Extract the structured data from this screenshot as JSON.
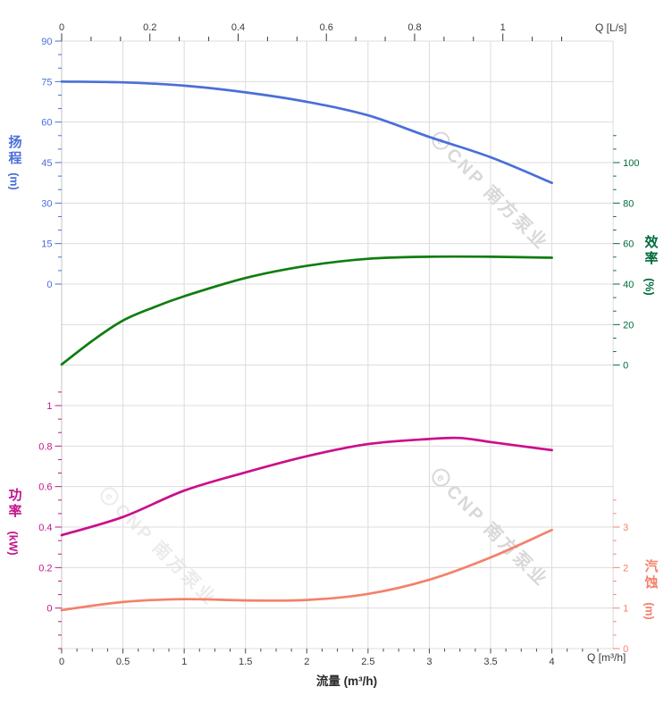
{
  "watermark": {
    "logo_char": "e",
    "text": "CNP 南方泵业"
  },
  "chart_data": {
    "type": "line",
    "title": "",
    "grid": true,
    "legend": "none",
    "x_axis_bottom": {
      "title": "流量 (m³/h)",
      "unit_label": "Q [m³/h]",
      "ticks": [
        "0",
        "0.5",
        "1",
        "1.5",
        "2",
        "2.5",
        "3",
        "3.5",
        "4"
      ],
      "range": [
        0,
        4.5
      ]
    },
    "x_axis_top": {
      "unit_label": "Q [L/s]",
      "ticks": [
        "0",
        "0.2",
        "0.4",
        "0.6",
        "0.8",
        "1"
      ],
      "range": [
        0,
        1.25
      ]
    },
    "axes": {
      "head": {
        "title": "扬程",
        "unit": "(m)",
        "side": "left",
        "color": "#4a6fd8",
        "ticks": [
          "90",
          "75",
          "60",
          "45",
          "30",
          "15",
          "0"
        ],
        "range": [
          0,
          90
        ]
      },
      "efficiency": {
        "title": "效率",
        "unit": "(%)",
        "side": "right",
        "color": "#006b3c",
        "ticks": [
          "100",
          "80",
          "60",
          "40",
          "20",
          "0"
        ],
        "range": [
          0,
          100
        ]
      },
      "power": {
        "title": "功率",
        "unit": "(kW)",
        "side": "left",
        "color": "#c2148c",
        "ticks": [
          "1",
          "0.8",
          "0.6",
          "0.4",
          "0.2",
          "0"
        ],
        "range": [
          0,
          1
        ]
      },
      "npsh": {
        "title": "汽蚀",
        "unit": "(m)",
        "side": "right",
        "color": "#f5806b",
        "ticks": [
          "3",
          "2",
          "1",
          "0"
        ],
        "range": [
          0,
          3
        ]
      }
    },
    "series": [
      {
        "name": "head-curve",
        "axis": "head",
        "color": "#4a6fd8",
        "points": [
          [
            0,
            75
          ],
          [
            0.5,
            74.7
          ],
          [
            1,
            73.5
          ],
          [
            1.5,
            71
          ],
          [
            2,
            67.5
          ],
          [
            2.5,
            62.5
          ],
          [
            3,
            54.5
          ],
          [
            3.5,
            47
          ],
          [
            4,
            37.5
          ]
        ]
      },
      {
        "name": "efficiency-curve",
        "axis": "efficiency",
        "color": "#0f7d10",
        "points": [
          [
            0,
            0.3
          ],
          [
            0.25,
            12
          ],
          [
            0.5,
            22
          ],
          [
            0.75,
            28.5
          ],
          [
            1,
            34
          ],
          [
            1.5,
            43
          ],
          [
            2,
            49
          ],
          [
            2.5,
            52.5
          ],
          [
            3,
            53.5
          ],
          [
            3.5,
            53.5
          ],
          [
            4,
            53
          ]
        ]
      },
      {
        "name": "power-curve",
        "axis": "power",
        "color": "#cb0f8a",
        "points": [
          [
            0,
            0.36
          ],
          [
            0.5,
            0.45
          ],
          [
            1,
            0.58
          ],
          [
            1.5,
            0.67
          ],
          [
            2,
            0.75
          ],
          [
            2.5,
            0.81
          ],
          [
            3,
            0.835
          ],
          [
            3.25,
            0.84
          ],
          [
            3.5,
            0.82
          ],
          [
            4,
            0.78
          ]
        ]
      },
      {
        "name": "npsh-curve",
        "axis": "npsh",
        "color": "#f5806b",
        "points": [
          [
            0,
            0.95
          ],
          [
            0.5,
            1.15
          ],
          [
            1,
            1.22
          ],
          [
            1.5,
            1.19
          ],
          [
            2,
            1.2
          ],
          [
            2.5,
            1.35
          ],
          [
            3,
            1.7
          ],
          [
            3.5,
            2.25
          ],
          [
            4,
            2.93
          ]
        ]
      }
    ]
  }
}
